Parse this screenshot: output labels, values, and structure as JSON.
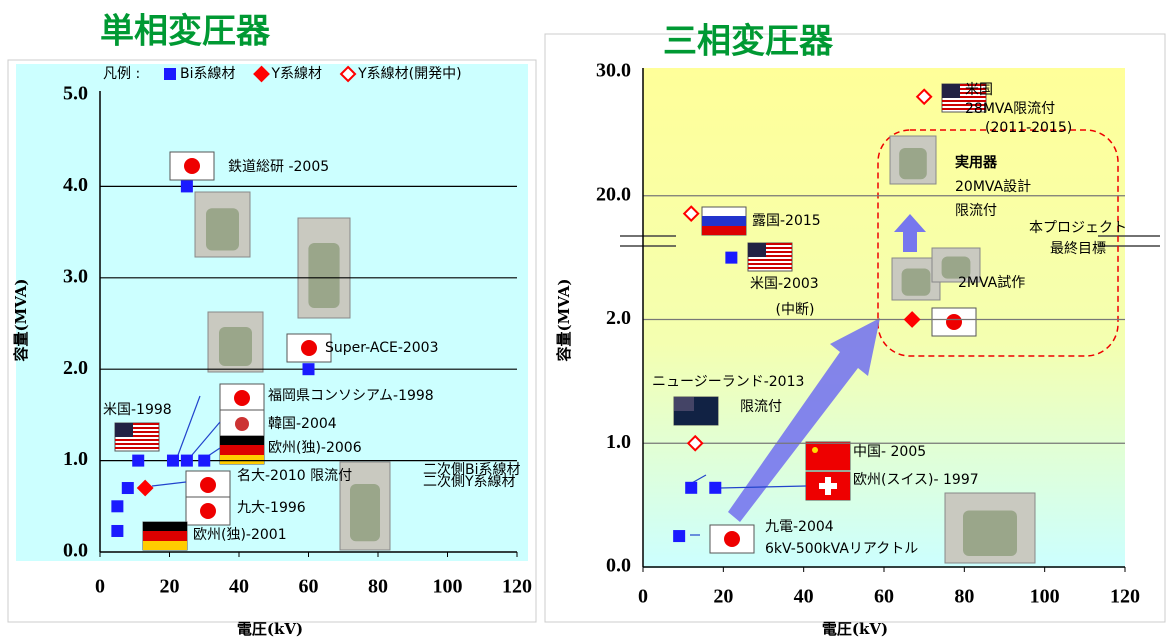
{
  "chart_data": [
    {
      "type": "scatter",
      "title": "単相変圧器",
      "x_label": "電圧(kV)",
      "y_label": "容量(MVA)",
      "xlim": [
        0,
        120
      ],
      "xticks": [
        0,
        20,
        40,
        60,
        80,
        100,
        120
      ],
      "ylim": [
        0,
        5
      ],
      "yticks": [
        {
          "value": 0,
          "label": "0.0"
        },
        {
          "value": 1,
          "label": "1.0"
        },
        {
          "value": 2,
          "label": "2.0"
        },
        {
          "value": 3,
          "label": "3.0"
        },
        {
          "value": 4,
          "label": "4.0"
        },
        {
          "value": 5,
          "label": "5.0"
        }
      ],
      "grid": true,
      "axis_break": false,
      "legend_title": "凡例 :",
      "series": [
        {
          "name": "Bi系線材",
          "color": "#1a1aff",
          "marker": "square",
          "x": [
            25,
            60,
            11,
            21,
            25,
            30,
            8,
            5,
            5
          ],
          "values": [
            4,
            2,
            1,
            1,
            1,
            1,
            0.7,
            0.5,
            0.23
          ]
        },
        {
          "name": "Y系線材",
          "color": "#ff0000",
          "marker": "diamond",
          "x": [
            13
          ],
          "values": [
            0.7
          ]
        },
        {
          "name": "Y系線材(開発中)",
          "color": "#ff0000",
          "marker": "diamond-open",
          "x": [],
          "values": []
        }
      ],
      "annotations": [
        "鉄道総研 -2005",
        "Super-ACE-2003",
        "米国-1998",
        "福岡県コンソシアム-1998",
        "韓国-2004",
        "欧州(独)-2006",
        "名大-2010  限流付",
        "二次側Bi系線材",
        "二次側Y系線材",
        "九大-1996",
        "欧州(独)-2001"
      ]
    },
    {
      "type": "scatter",
      "title": "三相変圧器",
      "x_label": "電圧(kV)",
      "y_label": "容量(MVA)",
      "xlim": [
        0,
        120
      ],
      "xticks": [
        0,
        20,
        40,
        60,
        80,
        100,
        120
      ],
      "ylim": [
        0,
        30
      ],
      "yticks": [
        {
          "value": 0,
          "label": "0.0"
        },
        {
          "value": 1,
          "label": "1.0"
        },
        {
          "value": 2,
          "label": "2.0"
        },
        {
          "value": 20,
          "label": "20.0"
        },
        {
          "value": 30,
          "label": "30.0"
        }
      ],
      "grid": true,
      "axis_break": true,
      "series": [
        {
          "color": "#1a1aff",
          "marker": "square",
          "x": [
            22,
            12,
            18,
            9
          ],
          "values": [
            11,
            0.64,
            0.64,
            0.25
          ]
        },
        {
          "color": "#ff0000",
          "marker": "diamond",
          "x": [
            67
          ],
          "values": [
            2
          ]
        },
        {
          "color": "#ff0000",
          "marker": "diamond-open",
          "x": [
            70,
            12,
            13
          ],
          "values": [
            28,
            17.4,
            1
          ]
        }
      ],
      "annotations": [
        "米国",
        "28MVA限流付",
        "(2011-2015)",
        "実用器",
        "20MVA設計",
        "限流付",
        "本プロジェクト",
        "最終目標",
        "2MVA試作",
        "露国-2015",
        "米国-2003",
        "(中断)",
        "ニュージーランド-2013",
        "限流付",
        "中国- 2005",
        "欧州(スイス)- 1997",
        "九電-2004",
        "6kV-500kVAリアクトル"
      ]
    }
  ]
}
